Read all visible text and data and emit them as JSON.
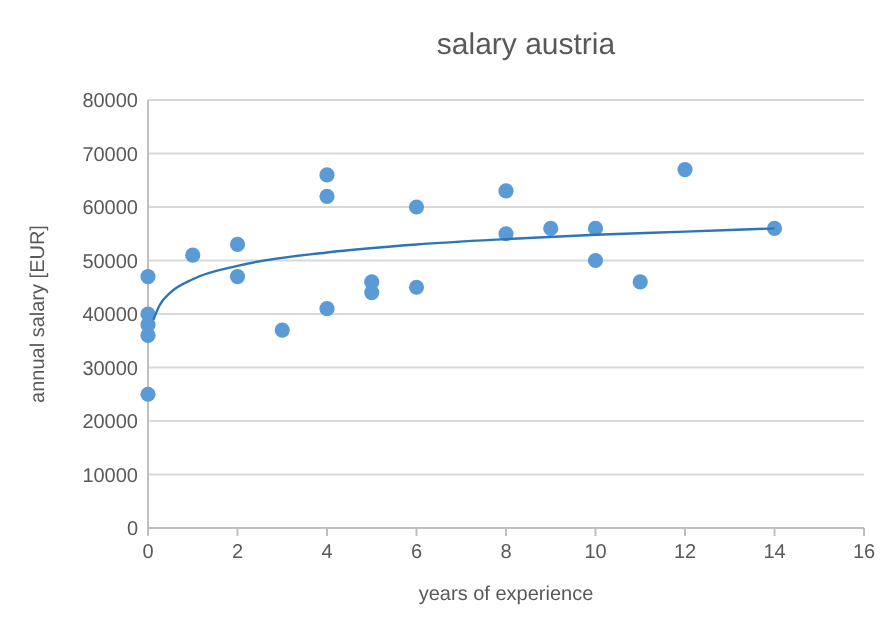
{
  "chart_data": {
    "type": "scatter",
    "title": "salary austria",
    "xlabel": "years of experience",
    "ylabel": "annual salary [EUR]",
    "xlim": [
      0,
      16
    ],
    "xticks": [
      0,
      2,
      4,
      6,
      8,
      10,
      12,
      14,
      16
    ],
    "ylim": [
      0,
      80000
    ],
    "yticks": [
      0,
      10000,
      20000,
      30000,
      40000,
      50000,
      60000,
      70000,
      80000
    ],
    "grid": "y",
    "marker": "circle",
    "series": [
      {
        "color": "#5b9bd5",
        "x": [
          0,
          0,
          0,
          0,
          0,
          1,
          2,
          2,
          3,
          4,
          4,
          4,
          5,
          5,
          6,
          6,
          8,
          8,
          9,
          10,
          10,
          11,
          12,
          14
        ],
        "values": [
          47000,
          40000,
          38000,
          36000,
          25000,
          51000,
          53000,
          47000,
          37000,
          66000,
          62000,
          41000,
          46000,
          44000,
          60000,
          45000,
          63000,
          55000,
          56000,
          56000,
          50000,
          46000,
          67000,
          56000
        ]
      },
      {
        "type": "line",
        "color": "#2e75b6",
        "marker": "none",
        "x": [
          0.12,
          0.25,
          0.5,
          1,
          2,
          4,
          6,
          8,
          10,
          12,
          14
        ],
        "values": [
          38900,
          41500,
          44000,
          46500,
          49000,
          51500,
          53000,
          54000,
          54800,
          55400,
          56000
        ]
      }
    ]
  }
}
